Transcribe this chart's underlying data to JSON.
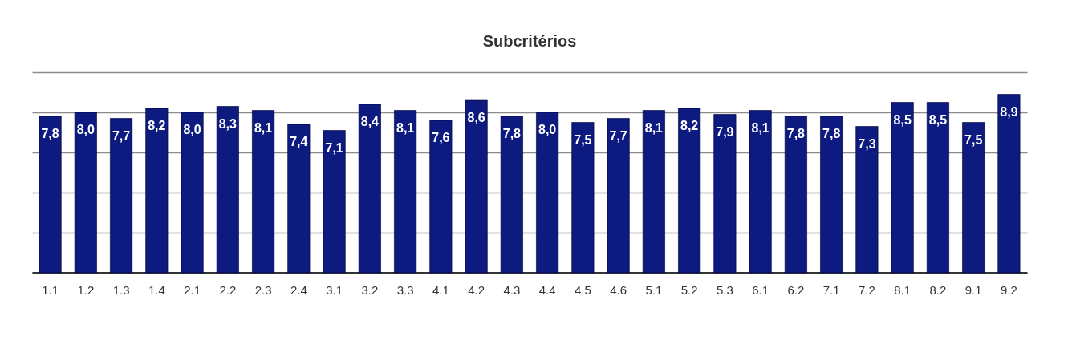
{
  "chart_data": {
    "type": "bar",
    "title": "Subcritérios",
    "categories": [
      "1.1",
      "1.2",
      "1.3",
      "1.4",
      "2.1",
      "2.2",
      "2.3",
      "2.4",
      "3.1",
      "3.2",
      "3.3",
      "4.1",
      "4.2",
      "4.3",
      "4.4",
      "4.5",
      "4.6",
      "5.1",
      "5.2",
      "5.3",
      "6.1",
      "6.2",
      "7.1",
      "7.2",
      "8.1",
      "8.2",
      "9.1",
      "9.2"
    ],
    "values": [
      7.8,
      8.0,
      7.7,
      8.2,
      8.0,
      8.3,
      8.1,
      7.4,
      7.1,
      8.4,
      8.1,
      7.6,
      8.6,
      7.8,
      8.0,
      7.5,
      7.7,
      8.1,
      8.2,
      7.9,
      8.1,
      7.8,
      7.8,
      7.3,
      8.5,
      8.5,
      7.5,
      8.9
    ],
    "value_labels": [
      "7,8",
      "8,0",
      "7,7",
      "8,2",
      "8,0",
      "8,3",
      "8,1",
      "7,4",
      "7,1",
      "8,4",
      "8,1",
      "7,6",
      "8,6",
      "7,8",
      "8,0",
      "7,5",
      "7,7",
      "8,1",
      "8,2",
      "7,9",
      "8,1",
      "7,8",
      "7,8",
      "7,3",
      "8,5",
      "8,5",
      "7,5",
      "8,9"
    ],
    "color": "#0d1a80",
    "ylim": [
      0,
      10
    ],
    "yticks": [
      {
        "value": 0,
        "label": null
      },
      {
        "value": 2,
        "label": null
      },
      {
        "value": 4,
        "label": null
      },
      {
        "value": 6,
        "label": null
      },
      {
        "value": 8,
        "label": null
      },
      {
        "value": 10,
        "label": null
      }
    ],
    "grid": "y",
    "tick_labels": "x"
  }
}
